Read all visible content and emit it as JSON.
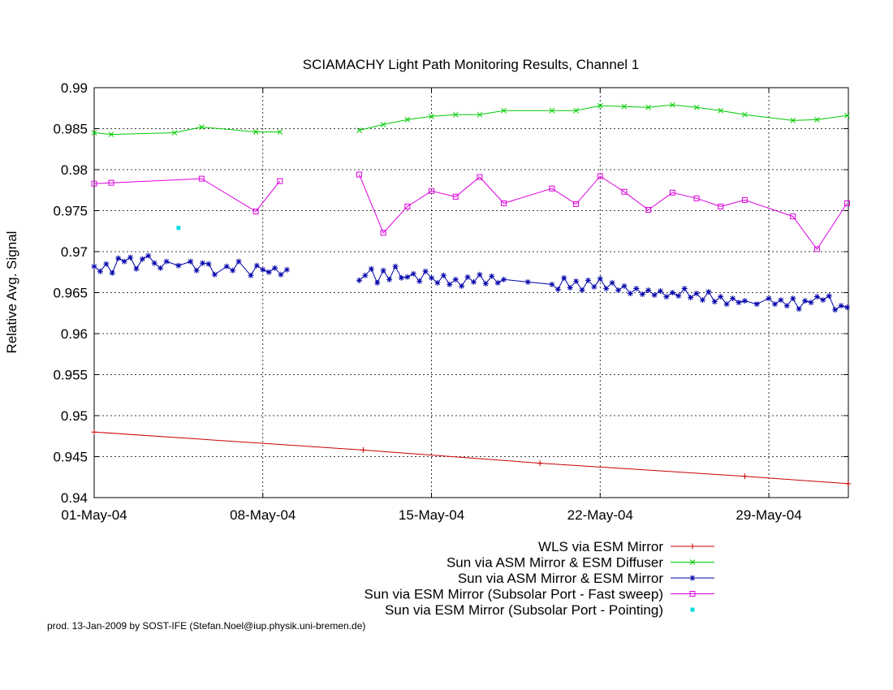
{
  "chart_data": {
    "type": "line",
    "title": "SCIAMACHY Light Path Monitoring Results, Channel 1",
    "ylabel": "Relative Avg. Signal",
    "xlabel": "",
    "xlim": [
      "2004-05-01",
      "2004-06-01T07:12"
    ],
    "ylim": [
      0.94,
      0.99
    ],
    "x_ticks": [
      "2004-05-01",
      "2004-05-08",
      "2004-05-15",
      "2004-05-22",
      "2004-05-29"
    ],
    "x_tick_labels": [
      "01-May-04",
      "08-May-04",
      "15-May-04",
      "22-May-04",
      "29-May-04"
    ],
    "y_ticks": [
      0.94,
      0.945,
      0.95,
      0.955,
      0.96,
      0.965,
      0.97,
      0.975,
      0.98,
      0.985,
      0.99
    ],
    "y_tick_labels": [
      "0.94",
      "0.945",
      "0.95",
      "0.955",
      "0.96",
      "0.965",
      "0.97",
      "0.975",
      "0.98",
      "0.985",
      "0.99"
    ],
    "grid": true,
    "legend_position": "bottom-right, below plot",
    "series": [
      {
        "name": "WLS via ESM Mirror",
        "color": "#cc0000",
        "marker": "plus",
        "connect": true,
        "points": [
          [
            "2004-05-01T00:00",
            0.948
          ],
          [
            "2004-05-12T04:00",
            0.9458
          ],
          [
            "2004-05-19T12:00",
            0.9442
          ],
          [
            "2004-05-28T00:00",
            0.9426
          ],
          [
            "2004-06-01T07:00",
            0.9417
          ]
        ]
      },
      {
        "name": "Sun via ASM Mirror & ESM Diffuser",
        "color": "#00cc00",
        "marker": "x",
        "connect": true,
        "points": [
          [
            "2004-05-01T00:00",
            0.9845
          ],
          [
            "2004-05-01T17:00",
            0.9843
          ],
          [
            "2004-05-04T08:00",
            0.9845
          ],
          [
            "2004-05-05T11:00",
            0.9852
          ],
          [
            "2004-05-07T17:00",
            0.9846
          ],
          [
            "2004-05-08T17:00",
            0.9846
          ],
          null,
          [
            "2004-05-12T00:00",
            0.9848
          ],
          [
            "2004-05-13T00:00",
            0.9855
          ],
          [
            "2004-05-14T00:00",
            0.9861
          ],
          [
            "2004-05-15T00:00",
            0.9865
          ],
          [
            "2004-05-16T00:00",
            0.9867
          ],
          [
            "2004-05-17T00:00",
            0.9867
          ],
          [
            "2004-05-18T00:00",
            0.9872
          ],
          [
            "2004-05-20T00:00",
            0.9872
          ],
          [
            "2004-05-21T00:00",
            0.9872
          ],
          [
            "2004-05-22T00:00",
            0.9878
          ],
          [
            "2004-05-23T00:00",
            0.9877
          ],
          [
            "2004-05-24T00:00",
            0.9876
          ],
          [
            "2004-05-25T00:00",
            0.9879
          ],
          [
            "2004-05-26T00:00",
            0.9876
          ],
          [
            "2004-05-27T00:00",
            0.9872
          ],
          [
            "2004-05-28T00:00",
            0.9867
          ],
          [
            "2004-05-30T00:00",
            0.986
          ],
          [
            "2004-05-31T00:00",
            0.9861
          ],
          [
            "2004-06-01T06:00",
            0.9866
          ]
        ]
      },
      {
        "name": "Sun via ASM Mirror & ESM Mirror",
        "color": "#0000aa",
        "marker": "star",
        "connect": true,
        "points": [
          [
            "2004-05-01T00:00",
            0.9682
          ],
          [
            "2004-05-01T06:00",
            0.9676
          ],
          [
            "2004-05-01T12:00",
            0.9685
          ],
          [
            "2004-05-01T18:00",
            0.9674
          ],
          [
            "2004-05-02T00:00",
            0.9692
          ],
          [
            "2004-05-02T06:00",
            0.9688
          ],
          [
            "2004-05-02T12:00",
            0.9693
          ],
          [
            "2004-05-02T18:00",
            0.9679
          ],
          [
            "2004-05-03T00:00",
            0.9691
          ],
          [
            "2004-05-03T06:00",
            0.9695
          ],
          [
            "2004-05-03T12:00",
            0.9686
          ],
          [
            "2004-05-03T18:00",
            0.968
          ],
          [
            "2004-05-04T00:00",
            0.9688
          ],
          [
            "2004-05-04T12:00",
            0.9683
          ],
          [
            "2004-05-05T00:00",
            0.9688
          ],
          [
            "2004-05-05T06:00",
            0.9677
          ],
          [
            "2004-05-05T12:00",
            0.9686
          ],
          [
            "2004-05-05T18:00",
            0.9685
          ],
          [
            "2004-05-06T00:00",
            0.9672
          ],
          [
            "2004-05-06T12:00",
            0.9682
          ],
          [
            "2004-05-06T18:00",
            0.9677
          ],
          [
            "2004-05-07T00:00",
            0.9688
          ],
          [
            "2004-05-07T12:00",
            0.9671
          ],
          [
            "2004-05-07T18:00",
            0.9683
          ],
          [
            "2004-05-08T00:00",
            0.9678
          ],
          [
            "2004-05-08T06:00",
            0.9675
          ],
          [
            "2004-05-08T12:00",
            0.968
          ],
          [
            "2004-05-08T18:00",
            0.9672
          ],
          [
            "2004-05-09T00:00",
            0.9678
          ],
          null,
          [
            "2004-05-12T00:00",
            0.9665
          ],
          [
            "2004-05-12T06:00",
            0.9671
          ],
          [
            "2004-05-12T12:00",
            0.9679
          ],
          [
            "2004-05-12T18:00",
            0.9662
          ],
          [
            "2004-05-13T00:00",
            0.9677
          ],
          [
            "2004-05-13T06:00",
            0.9666
          ],
          [
            "2004-05-13T12:00",
            0.9682
          ],
          [
            "2004-05-13T18:00",
            0.9668
          ],
          [
            "2004-05-14T00:00",
            0.9669
          ],
          [
            "2004-05-14T06:00",
            0.9673
          ],
          [
            "2004-05-14T12:00",
            0.9664
          ],
          [
            "2004-05-14T18:00",
            0.9676
          ],
          [
            "2004-05-15T00:00",
            0.9668
          ],
          [
            "2004-05-15T06:00",
            0.9662
          ],
          [
            "2004-05-15T12:00",
            0.9671
          ],
          [
            "2004-05-15T18:00",
            0.966
          ],
          [
            "2004-05-16T00:00",
            0.9666
          ],
          [
            "2004-05-16T06:00",
            0.9658
          ],
          [
            "2004-05-16T12:00",
            0.9669
          ],
          [
            "2004-05-16T18:00",
            0.9663
          ],
          [
            "2004-05-17T00:00",
            0.9672
          ],
          [
            "2004-05-17T06:00",
            0.9661
          ],
          [
            "2004-05-17T12:00",
            0.967
          ],
          [
            "2004-05-17T18:00",
            0.9662
          ],
          [
            "2004-05-18T00:00",
            0.9666
          ],
          [
            "2004-05-19T00:00",
            0.9663
          ],
          [
            "2004-05-20T00:00",
            0.966
          ],
          [
            "2004-05-20T06:00",
            0.9654
          ],
          [
            "2004-05-20T12:00",
            0.9668
          ],
          [
            "2004-05-20T18:00",
            0.9656
          ],
          [
            "2004-05-21T00:00",
            0.9664
          ],
          [
            "2004-05-21T06:00",
            0.9653
          ],
          [
            "2004-05-21T12:00",
            0.9665
          ],
          [
            "2004-05-21T18:00",
            0.9657
          ],
          [
            "2004-05-22T00:00",
            0.9667
          ],
          [
            "2004-05-22T06:00",
            0.9655
          ],
          [
            "2004-05-22T12:00",
            0.9662
          ],
          [
            "2004-05-22T18:00",
            0.9653
          ],
          [
            "2004-05-23T00:00",
            0.9658
          ],
          [
            "2004-05-23T06:00",
            0.9649
          ],
          [
            "2004-05-23T12:00",
            0.9655
          ],
          [
            "2004-05-23T18:00",
            0.9648
          ],
          [
            "2004-05-24T00:00",
            0.9653
          ],
          [
            "2004-05-24T06:00",
            0.9647
          ],
          [
            "2004-05-24T12:00",
            0.9652
          ],
          [
            "2004-05-24T18:00",
            0.9645
          ],
          [
            "2004-05-25T00:00",
            0.965
          ],
          [
            "2004-05-25T06:00",
            0.9646
          ],
          [
            "2004-05-25T12:00",
            0.9655
          ],
          [
            "2004-05-25T18:00",
            0.9644
          ],
          [
            "2004-05-26T00:00",
            0.9649
          ],
          [
            "2004-05-26T06:00",
            0.9641
          ],
          [
            "2004-05-26T12:00",
            0.9651
          ],
          [
            "2004-05-26T18:00",
            0.9639
          ],
          [
            "2004-05-27T00:00",
            0.9645
          ],
          [
            "2004-05-27T06:00",
            0.9636
          ],
          [
            "2004-05-27T12:00",
            0.9643
          ],
          [
            "2004-05-27T18:00",
            0.9638
          ],
          [
            "2004-05-28T00:00",
            0.964
          ],
          [
            "2004-05-28T12:00",
            0.9636
          ],
          [
            "2004-05-29T00:00",
            0.9643
          ],
          [
            "2004-05-29T06:00",
            0.9636
          ],
          [
            "2004-05-29T12:00",
            0.9641
          ],
          [
            "2004-05-29T18:00",
            0.9634
          ],
          [
            "2004-05-30T00:00",
            0.9643
          ],
          [
            "2004-05-30T06:00",
            0.963
          ],
          [
            "2004-05-30T12:00",
            0.964
          ],
          [
            "2004-05-30T18:00",
            0.9638
          ],
          [
            "2004-05-31T00:00",
            0.9645
          ],
          [
            "2004-05-31T06:00",
            0.9641
          ],
          [
            "2004-05-31T12:00",
            0.9646
          ],
          [
            "2004-05-31T18:00",
            0.9629
          ],
          [
            "2004-06-01T00:00",
            0.9634
          ],
          [
            "2004-06-01T06:00",
            0.9632
          ]
        ]
      },
      {
        "name": "Sun via ESM Mirror (Subsolar Port - Fast sweep)",
        "color": "#dd00dd",
        "marker": "square",
        "connect": true,
        "points": [
          [
            "2004-05-01T00:00",
            0.9783
          ],
          [
            "2004-05-01T17:00",
            0.9784
          ],
          [
            "2004-05-05T11:00",
            0.9789
          ],
          [
            "2004-05-07T17:00",
            0.9749
          ],
          [
            "2004-05-08T17:00",
            0.9786
          ],
          null,
          [
            "2004-05-12T00:00",
            0.9794
          ],
          [
            "2004-05-13T00:00",
            0.9723
          ],
          [
            "2004-05-14T00:00",
            0.9755
          ],
          [
            "2004-05-15T00:00",
            0.9774
          ],
          [
            "2004-05-16T00:00",
            0.9767
          ],
          [
            "2004-05-17T00:00",
            0.9791
          ],
          [
            "2004-05-18T00:00",
            0.9759
          ],
          [
            "2004-05-20T00:00",
            0.9777
          ],
          [
            "2004-05-21T00:00",
            0.9758
          ],
          [
            "2004-05-22T00:00",
            0.9792
          ],
          [
            "2004-05-23T00:00",
            0.9773
          ],
          [
            "2004-05-24T00:00",
            0.9751
          ],
          [
            "2004-05-25T00:00",
            0.9772
          ],
          [
            "2004-05-26T00:00",
            0.9765
          ],
          [
            "2004-05-27T00:00",
            0.9755
          ],
          [
            "2004-05-28T00:00",
            0.9763
          ],
          [
            "2004-05-30T00:00",
            0.9743
          ],
          [
            "2004-05-31T00:00",
            0.9703
          ],
          [
            "2004-06-01T06:00",
            0.9759
          ]
        ]
      },
      {
        "name": "Sun via ESM Mirror (Subsolar Port - Pointing)",
        "color": "#00dddd",
        "marker": "dot",
        "connect": false,
        "points": [
          [
            "2004-05-04T12:00",
            0.9729
          ]
        ]
      }
    ],
    "footer": "prod. 13-Jan-2009 by SOST-IFE (Stefan.Noel@iup.physik.uni-bremen.de)"
  }
}
